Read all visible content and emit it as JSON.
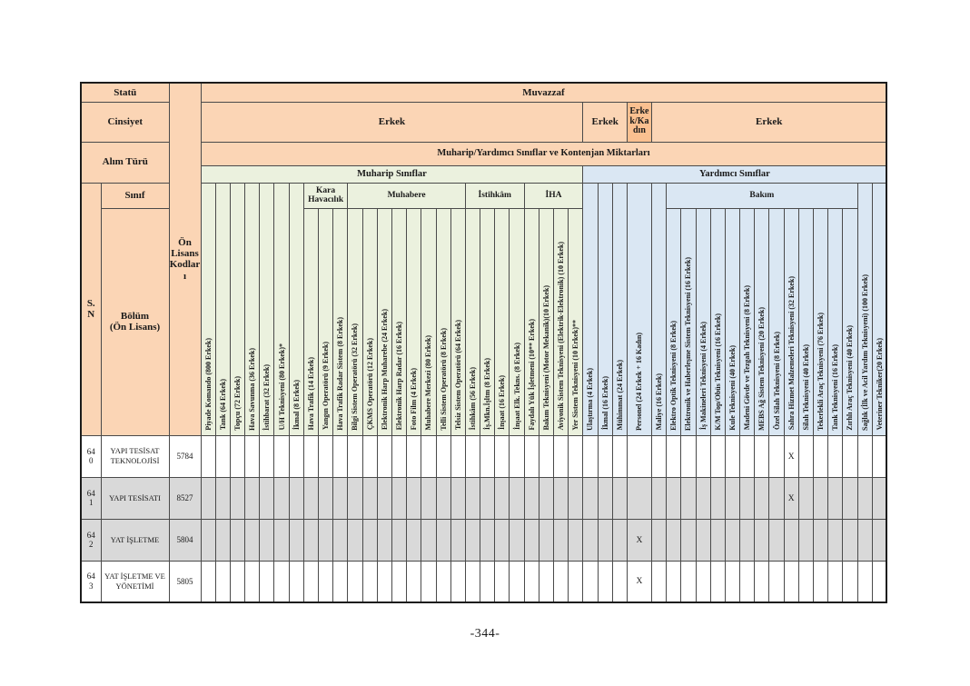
{
  "page": {
    "number": "-344-"
  },
  "colors": {
    "header_orange": "#FBD5B5",
    "header_orange_dark": "#FAC090",
    "muharip_green": "#EBF1DE",
    "yardimci_blue": "#DAE7F3",
    "row_gray": "#D9D9D9"
  },
  "header": {
    "statu_label": "Statü",
    "statu_value": "Muvazzaf",
    "cinsiyet_label": "Cinsiyet",
    "cinsiyet_groups": [
      {
        "label": "Erkek",
        "span": 26,
        "highlight": false
      },
      {
        "label": "Erkek",
        "span": 3,
        "highlight": false
      },
      {
        "label": "Erkek/Kadın",
        "span": 1,
        "highlight": true
      },
      {
        "label": "Erkek",
        "span": 16,
        "highlight": false
      }
    ],
    "alim_turu_label": "Alım Türü",
    "alim_turu_value": "Muharip/Yardımcı Sınıflar ve Kontenjan Miktarları",
    "sections": [
      {
        "id": "muharip",
        "label": "Muharip Sınıflar",
        "span": 26
      },
      {
        "id": "yardimci",
        "label": "Yardımcı Sınıflar",
        "span": 20
      }
    ],
    "sn_label": "S.\nN",
    "sinif_label": "Sınıf",
    "bolum_label": "Bölüm\n(Ön Lisans)",
    "on_lisans_label": "Ön Lisans Kodları"
  },
  "groups": [
    {
      "id": "kara",
      "label": "Kara Havacılık",
      "span": 3,
      "section": "muharip"
    },
    {
      "id": "muhabere",
      "label": "Muhabere",
      "span": 8,
      "section": "muharip"
    },
    {
      "id": "istihkam",
      "label": "İstihkâm",
      "span": 4,
      "section": "muharip"
    },
    {
      "id": "iha",
      "label": "İHA",
      "span": 4,
      "section": "muharip"
    },
    {
      "id": "bakim",
      "label": "Bakım",
      "span": 13,
      "section": "yardimci"
    }
  ],
  "columns": [
    {
      "label": "Piyade Komando (800 Erkek)",
      "section": "muharip",
      "group": null,
      "wide": false
    },
    {
      "label": "Tank (64 Erkek)",
      "section": "muharip",
      "group": null,
      "wide": false
    },
    {
      "label": "Topçu (72 Erkek)",
      "section": "muharip",
      "group": null,
      "wide": false
    },
    {
      "label": "Hava Savunma (36 Erkek)",
      "section": "muharip",
      "group": null,
      "wide": false
    },
    {
      "label": "İstihbarat (32 Erkek)",
      "section": "muharip",
      "group": null,
      "wide": false
    },
    {
      "label": "U/H Teknisyeni (80 Erkek)*",
      "section": "muharip",
      "group": null,
      "wide": false
    },
    {
      "label": "İkmal (8 Erkek)",
      "section": "muharip",
      "group": null,
      "wide": false
    },
    {
      "label": "Hava Trafik (14 Erkek)",
      "section": "muharip",
      "group": "kara",
      "wide": false
    },
    {
      "label": "Yangın Operatörü (9 Erkek)",
      "section": "muharip",
      "group": "kara",
      "wide": false
    },
    {
      "label": "Hava Trafik Radar Sistem (8 Erkek)",
      "section": "muharip",
      "group": "kara",
      "wide": false
    },
    {
      "label": "Bilgi Sistem Operatörü (32 Erkek)",
      "section": "muharip",
      "group": "muhabere",
      "wide": false
    },
    {
      "label": "ÇKMS Operatörü (12 Erkek)",
      "section": "muharip",
      "group": "muhabere",
      "wide": false
    },
    {
      "label": "Elektronik Harp Muharebe (24 Erkek)",
      "section": "muharip",
      "group": "muhabere",
      "wide": false
    },
    {
      "label": "Elektronik Harp Radar (16 Erkek)",
      "section": "muharip",
      "group": "muhabere",
      "wide": false
    },
    {
      "label": "Foto Film (4 Erkek)",
      "section": "muharip",
      "group": "muhabere",
      "wide": false
    },
    {
      "label": "Muhabere Merkezi (80 Erkek)",
      "section": "muharip",
      "group": "muhabere",
      "wide": false
    },
    {
      "label": "Telli Sistem Operatörü (8 Erkek)",
      "section": "muharip",
      "group": "muhabere",
      "wide": false
    },
    {
      "label": "Telsiz Sistem Operatörü (64 Erkek)",
      "section": "muharip",
      "group": "muhabere",
      "wide": false
    },
    {
      "label": "İstihkâm (56 Erkek)",
      "section": "muharip",
      "group": "istihkam",
      "wide": false
    },
    {
      "label": "İş.Mkn.İşltm (8 Erkek)",
      "section": "muharip",
      "group": "istihkam",
      "wide": false
    },
    {
      "label": "İnşaat (16 Erkek)",
      "section": "muharip",
      "group": "istihkam",
      "wide": false
    },
    {
      "label": "İnşaat Elk. Tekns. (8 Erkek)",
      "section": "muharip",
      "group": "istihkam",
      "wide": false
    },
    {
      "label": "Faydalı Yük İşletmeni (10** Erkek)",
      "section": "muharip",
      "group": "iha",
      "wide": false
    },
    {
      "label": "Bakım Teknisyeni (Motor Mekanik)(10 Erkek)",
      "section": "muharip",
      "group": "iha",
      "wide": false
    },
    {
      "label": "Aviyonik Sistem Teknisyeni (Elektrik-Elektronik) (10 Erkek)",
      "section": "muharip",
      "group": "iha",
      "wide": false
    },
    {
      "label": "Yer Sistem Teknisyeni (10 Erkek)**",
      "section": "muharip",
      "group": "iha",
      "wide": false
    },
    {
      "label": "Ulaştırma (4 Erkek)",
      "section": "yardimci",
      "group": null,
      "wide": false
    },
    {
      "label": "İkmal (16 Erkek)",
      "section": "yardimci",
      "group": null,
      "wide": false
    },
    {
      "label": "Mühimmat (24 Erkek)",
      "section": "yardimci",
      "group": null,
      "wide": false
    },
    {
      "label": "Personel (24 Erkek + 16 Kadın)",
      "section": "yardimci",
      "group": null,
      "wide": true
    },
    {
      "label": "Maliye (16 Erkek)",
      "section": "yardimci",
      "group": null,
      "wide": false
    },
    {
      "label": "Elektro Optik Teknisyeni (8 Erkek)",
      "section": "yardimci",
      "group": "bakim",
      "wide": false
    },
    {
      "label": "Elektronik ve Haberleşme Sistem Teknisyeni (16 Erkek)",
      "section": "yardimci",
      "group": "bakim",
      "wide": false
    },
    {
      "label": "İş Makineleri Teknisyeni (4 Erkek)",
      "section": "yardimci",
      "group": "bakim",
      "wide": false
    },
    {
      "label": "K/M Top/Obüs Teknisyeni (16 Erkek)",
      "section": "yardimci",
      "group": "bakim",
      "wide": false
    },
    {
      "label": "Kule Teknisyeni (40 Erkek)",
      "section": "yardimci",
      "group": "bakim",
      "wide": false
    },
    {
      "label": "Madeni Gövde ve Tezgah Teknisyeni (8 Erkek)",
      "section": "yardimci",
      "group": "bakim",
      "wide": false
    },
    {
      "label": "MEBS Ağ Sistem Teknisyeni (20 Erkek)",
      "section": "yardimci",
      "group": "bakim",
      "wide": false
    },
    {
      "label": "Özel Silah Teknisyeni (8 Erkek)",
      "section": "yardimci",
      "group": "bakim",
      "wide": false
    },
    {
      "label": "Sahra Hizmet Malzemeleri Teknisyeni (32 Erkek)",
      "section": "yardimci",
      "group": "bakim",
      "wide": false
    },
    {
      "label": "Silah Teknisyeni (40 Erkek)",
      "section": "yardimci",
      "group": "bakim",
      "wide": false
    },
    {
      "label": "Tekerlekli Araç Teknisyeni (76 Erkek)",
      "section": "yardimci",
      "group": "bakim",
      "wide": false
    },
    {
      "label": "Tank Teknisyeni (16 Erkek)",
      "section": "yardimci",
      "group": "bakim",
      "wide": false
    },
    {
      "label": "Zırhlı Araç Teknisyeni (40 Erkek)",
      "section": "yardimci",
      "group": "bakim",
      "wide": false
    },
    {
      "label": "Sağlık (İlk ve Acil Yardım Teknisyeni) (100 Erkek)",
      "section": "yardimci",
      "group": null,
      "wide": false
    },
    {
      "label": "Veteriner Tekniker(20 Erkek)",
      "section": "yardimci",
      "group": null,
      "wide": false
    }
  ],
  "mark": "X",
  "rows": [
    {
      "sn": "640",
      "bolum": "YAPI TESİSAT TEKNOLOJİSİ",
      "kod": "5784",
      "shaded": false,
      "x_cols": [
        39
      ]
    },
    {
      "sn": "641",
      "bolum": "YAPI TESİSATI",
      "kod": "8527",
      "shaded": true,
      "x_cols": [
        39
      ]
    },
    {
      "sn": "642",
      "bolum": "YAT İŞLETME",
      "kod": "5804",
      "shaded": true,
      "x_cols": [
        29
      ]
    },
    {
      "sn": "643",
      "bolum": "YAT İŞLETME VE YÖNETİMİ",
      "kod": "5805",
      "shaded": false,
      "x_cols": [
        29
      ]
    }
  ]
}
